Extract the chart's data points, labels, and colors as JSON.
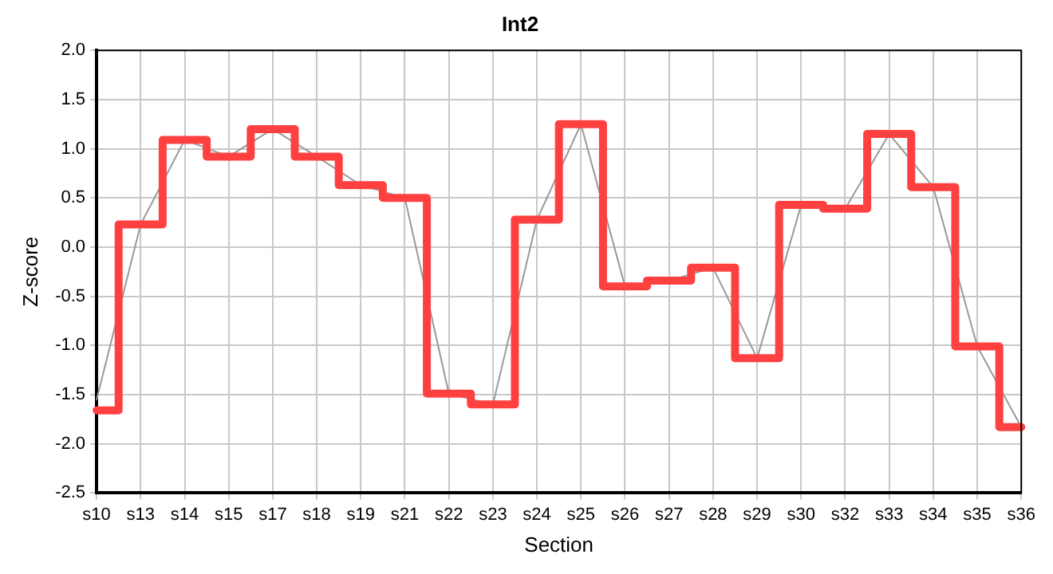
{
  "chart_data": {
    "type": "step",
    "title": "Int2",
    "xlabel": "Section",
    "ylabel": "Z-score",
    "categories": [
      "s10",
      "s13",
      "s14",
      "s15",
      "s17",
      "s18",
      "s19",
      "s21",
      "s22",
      "s23",
      "s24",
      "s25",
      "s26",
      "s27",
      "s28",
      "s29",
      "s30",
      "s32",
      "s33",
      "s34",
      "s35",
      "s36"
    ],
    "series": [
      {
        "type": "line",
        "color": "#999999",
        "values": [
          -1.55,
          0.23,
          1.09,
          0.92,
          1.2,
          0.92,
          0.63,
          0.5,
          -1.49,
          -1.6,
          0.28,
          1.25,
          -0.4,
          -0.34,
          -0.21,
          -1.13,
          0.43,
          0.39,
          1.15,
          0.61,
          -1.01,
          -1.83
        ]
      },
      {
        "color": "#ff4040",
        "values": [
          -1.66,
          0.23,
          1.09,
          0.92,
          1.2,
          0.92,
          0.63,
          0.5,
          -1.49,
          -1.6,
          0.28,
          1.25,
          -0.4,
          -0.34,
          -0.21,
          -1.13,
          0.43,
          0.39,
          1.15,
          0.61,
          -1.01,
          -1.83
        ]
      }
    ],
    "ylim": [
      -2.5,
      2.0
    ],
    "yticks": [
      {
        "value": -2.5,
        "label": "-2.5"
      },
      {
        "value": -2,
        "label": "-2.0"
      },
      {
        "value": -1.5,
        "label": "-1.5"
      },
      {
        "value": -1,
        "label": "-1.0"
      },
      {
        "value": -0.5,
        "label": "-0.5"
      },
      {
        "value": 0,
        "label": "0.0"
      },
      {
        "value": 0.5,
        "label": "0.5"
      },
      {
        "value": 1,
        "label": "1.0"
      },
      {
        "value": 1.5,
        "label": "1.5"
      },
      {
        "value": 2,
        "label": "2.0"
      }
    ],
    "grid": true,
    "legend": false
  }
}
